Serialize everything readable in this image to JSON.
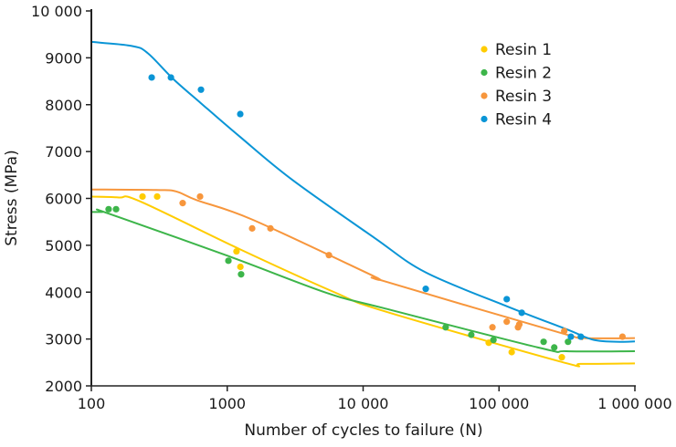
{
  "chart_data": {
    "type": "scatter",
    "title": "",
    "xlabel": "Number of cycles to failure (N)",
    "ylabel": "Stress (MPa)",
    "xscale": "log",
    "xlim": [
      100,
      1000000
    ],
    "ylim": [
      2000,
      10000
    ],
    "xticks": [
      100,
      1000,
      10000,
      100000,
      1000000
    ],
    "xtick_labels": [
      "100",
      "1000",
      "10 000",
      "100 000",
      "1 000 000"
    ],
    "yticks": [
      2000,
      3000,
      4000,
      5000,
      6000,
      7000,
      8000,
      9000,
      10000
    ],
    "ytick_labels": [
      "2000",
      "3000",
      "4000",
      "5000",
      "6000",
      "7000",
      "8000",
      "9000",
      "10 000"
    ],
    "grid": false,
    "legend_position": "top-right",
    "series": [
      {
        "name": "Resin 1",
        "color": "#ffcc00",
        "points": [
          [
            238,
            6040
          ],
          [
            305,
            6040
          ],
          [
            1170,
            4870
          ],
          [
            1250,
            4540
          ],
          [
            84000,
            2920
          ],
          [
            124000,
            2720
          ],
          [
            290000,
            2610
          ]
        ],
        "fit": [
          [
            100,
            6040
          ],
          [
            160,
            6020
          ],
          [
            227,
            5940
          ],
          [
            1250,
            4910
          ],
          [
            6240,
            3990
          ],
          [
            14100,
            3600
          ],
          [
            290000,
            2510
          ],
          [
            400000,
            2470
          ],
          [
            1000000,
            2480
          ]
        ]
      },
      {
        "name": "Resin 2",
        "color": "#3db54a",
        "points": [
          [
            134,
            5770
          ],
          [
            152,
            5770
          ],
          [
            1020,
            4670
          ],
          [
            1265,
            4380
          ],
          [
            40500,
            3250
          ],
          [
            62500,
            3090
          ],
          [
            91000,
            2980
          ],
          [
            213000,
            2940
          ],
          [
            255000,
            2820
          ],
          [
            322000,
            2940
          ]
        ],
        "fit": [
          [
            100,
            5710
          ],
          [
            120,
            5710
          ],
          [
            130,
            5690
          ],
          [
            1020,
            4770
          ],
          [
            5330,
            3990
          ],
          [
            14100,
            3660
          ],
          [
            200000,
            2810
          ],
          [
            313000,
            2740
          ],
          [
            1000000,
            2740
          ]
        ]
      },
      {
        "name": "Resin 3",
        "color": "#f7963c",
        "points": [
          [
            470,
            5900
          ],
          [
            631,
            6040
          ],
          [
            1525,
            5360
          ],
          [
            2080,
            5360
          ],
          [
            5600,
            4790
          ],
          [
            89500,
            3250
          ],
          [
            114000,
            3370
          ],
          [
            138000,
            3250
          ],
          [
            141000,
            3310
          ],
          [
            302000,
            3170
          ],
          [
            810000,
            3050
          ]
        ],
        "fit": [
          [
            100,
            6190
          ],
          [
            300,
            6180
          ],
          [
            420,
            6150
          ],
          [
            600,
            5960
          ],
          [
            1525,
            5550
          ],
          [
            12000,
            4340
          ],
          [
            14100,
            4240
          ],
          [
            300000,
            3110
          ],
          [
            425000,
            3020
          ],
          [
            1000000,
            3020
          ]
        ]
      },
      {
        "name": "Resin 4",
        "color": "#0a95d6",
        "points": [
          [
            278,
            8580
          ],
          [
            385,
            8580
          ],
          [
            641,
            8320
          ],
          [
            1247,
            7800
          ],
          [
            28900,
            4070
          ],
          [
            114000,
            3850
          ],
          [
            147000,
            3560
          ],
          [
            338000,
            3050
          ],
          [
            400000,
            3050
          ]
        ],
        "fit": [
          [
            100,
            9340
          ],
          [
            200,
            9250
          ],
          [
            260,
            9100
          ],
          [
            400,
            8550
          ],
          [
            641,
            8030
          ],
          [
            1247,
            7310
          ],
          [
            3000,
            6400
          ],
          [
            12100,
            5160
          ],
          [
            28900,
            4420
          ],
          [
            114000,
            3700
          ],
          [
            313000,
            3210
          ],
          [
            500000,
            2980
          ],
          [
            790000,
            2940
          ],
          [
            1000000,
            2950
          ]
        ]
      }
    ]
  }
}
